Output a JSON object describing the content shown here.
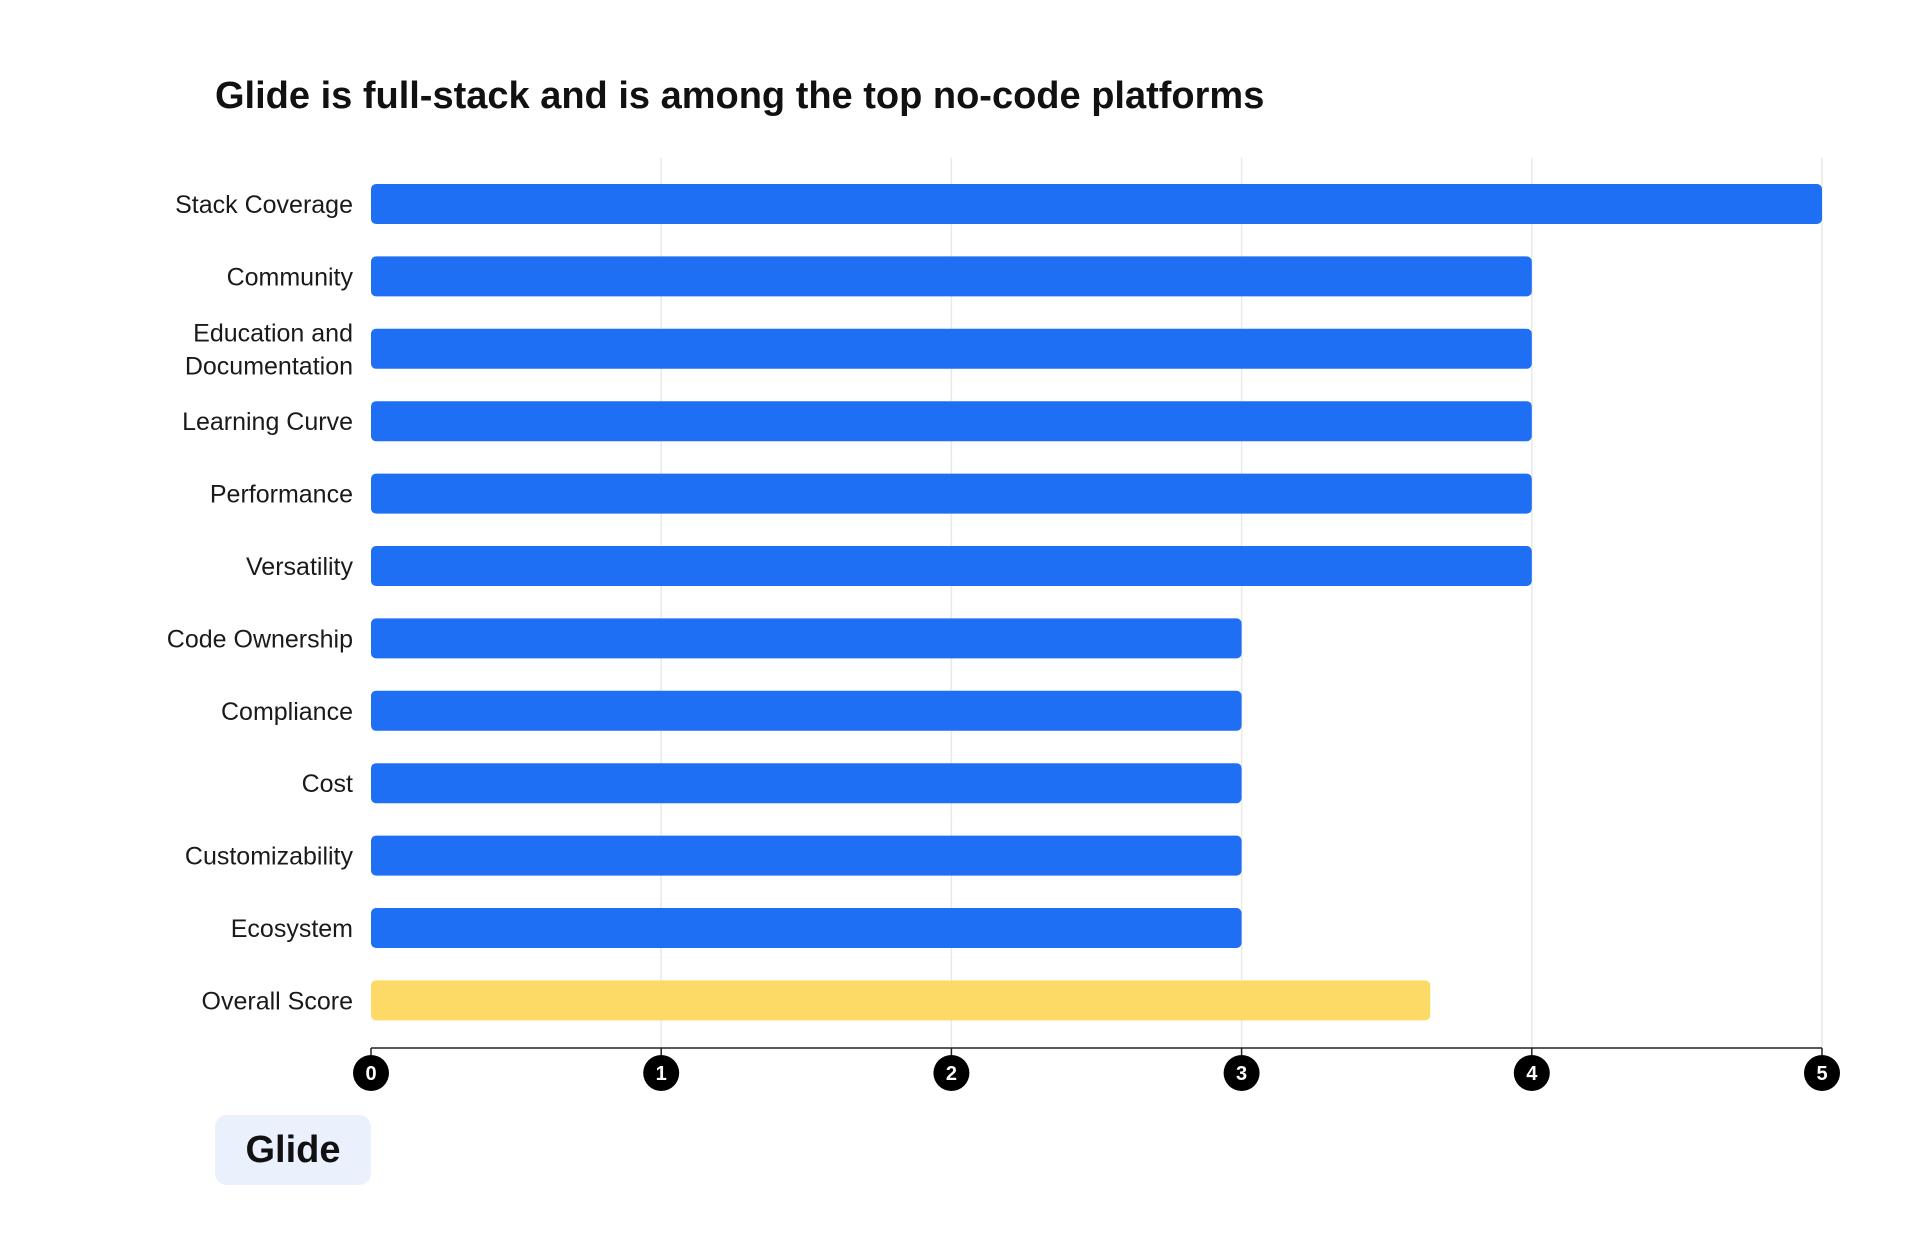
{
  "chart_data": {
    "type": "bar",
    "orientation": "horizontal",
    "title": "Glide is full-stack and is among the top no-code platforms",
    "categories": [
      [
        "Stack Coverage"
      ],
      [
        "Community"
      ],
      [
        "Education and",
        "Documentation"
      ],
      [
        "Learning Curve"
      ],
      [
        "Performance"
      ],
      [
        "Versatility"
      ],
      [
        "Code Ownership"
      ],
      [
        "Compliance"
      ],
      [
        "Cost"
      ],
      [
        "Customizability"
      ],
      [
        "Ecosystem"
      ],
      [
        "Overall Score"
      ]
    ],
    "values": [
      5,
      4,
      4,
      4,
      4,
      4,
      3,
      3,
      3,
      3,
      3,
      3.65
    ],
    "bar_colors": [
      "#1f6ff5",
      "#1f6ff5",
      "#1f6ff5",
      "#1f6ff5",
      "#1f6ff5",
      "#1f6ff5",
      "#1f6ff5",
      "#1f6ff5",
      "#1f6ff5",
      "#1f6ff5",
      "#1f6ff5",
      "#fdd966"
    ],
    "xlim": [
      0,
      5
    ],
    "xticks": [
      "0",
      "1",
      "2",
      "3",
      "4",
      "5"
    ],
    "xlabel": "",
    "ylabel": "",
    "grid": "vertical",
    "legend": "bottom-left",
    "colors": {
      "primary": "#1f6ff5",
      "highlight": "#fdd966",
      "tick_marker": "#000000",
      "grid": "#e9e9e9"
    }
  },
  "legend": {
    "label": "Glide"
  }
}
